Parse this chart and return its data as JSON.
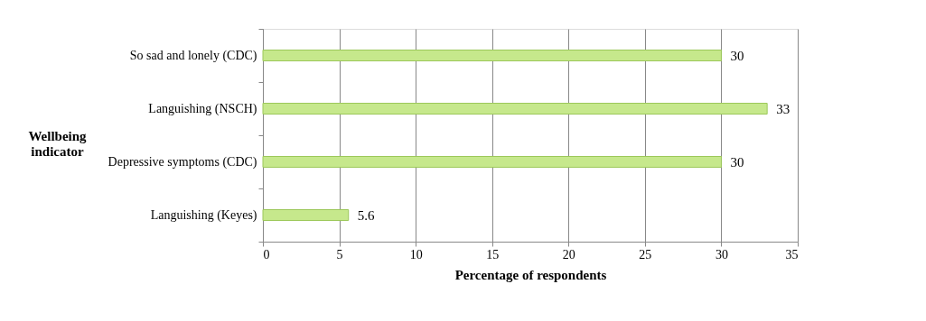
{
  "chart_data": {
    "type": "bar",
    "orientation": "horizontal",
    "xlabel": "Percentage of respondents",
    "ylabel": "Wellbeing indicator",
    "categories": [
      "So sad and lonely (CDC)",
      "Languishing (NSCH)",
      "Depressive symptoms (CDC)",
      "Languishing (Keyes)"
    ],
    "values": [
      30,
      33,
      30,
      5.6
    ],
    "color": "#c6e88c",
    "xlim": [
      0,
      35
    ],
    "xticks": [
      0,
      5,
      10,
      15,
      20,
      25,
      30,
      35
    ],
    "grid": "x",
    "data_labels": true
  }
}
